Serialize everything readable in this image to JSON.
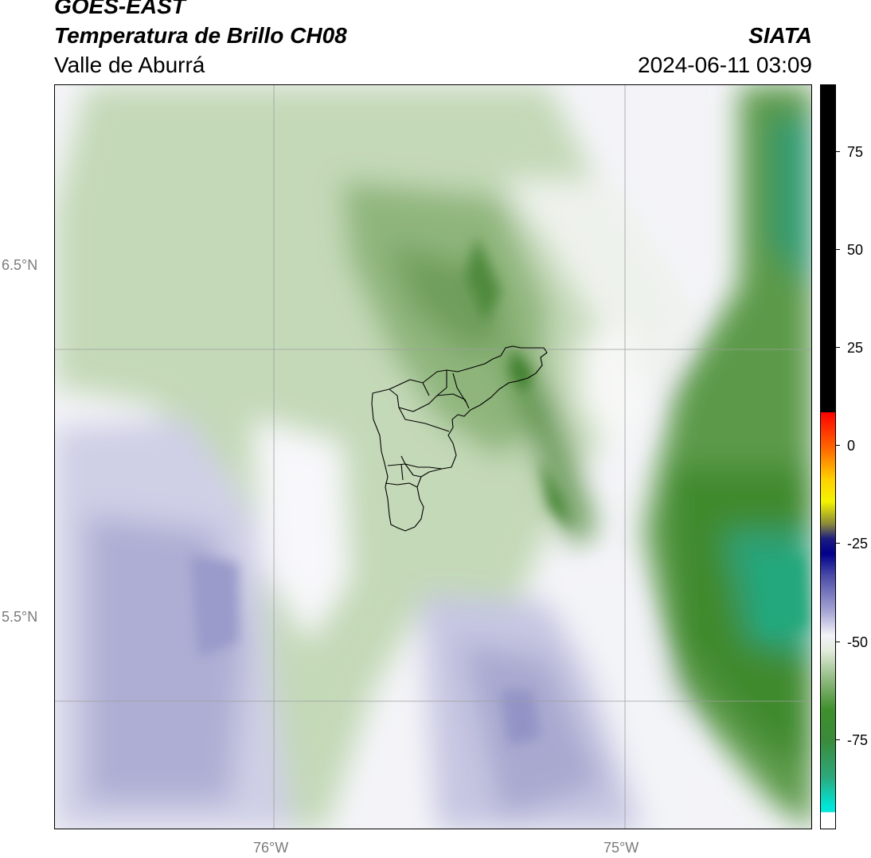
{
  "header": {
    "satellite": "GOES-EAST",
    "product": "Temperatura de Brillo CH08",
    "region": "Valle de Aburrá",
    "organization": "SIATA",
    "timestamp": "2024-06-11 03:09"
  },
  "map": {
    "latitude_labels": [
      "6.5°N",
      "5.5°N"
    ],
    "longitude_labels": [
      "76°W",
      "75°W"
    ]
  },
  "colorbar": {
    "tick_labels": [
      "75",
      "50",
      "25",
      "0",
      "-25",
      "-50",
      "-75"
    ],
    "colors": {
      "warm_top": "#000000",
      "red": "#ff0000",
      "yellow": "#f4f400",
      "navy": "#00008a",
      "lavender": "#aaaad6",
      "green": "#3f8f2c",
      "cyan": "#00e5d8"
    }
  }
}
